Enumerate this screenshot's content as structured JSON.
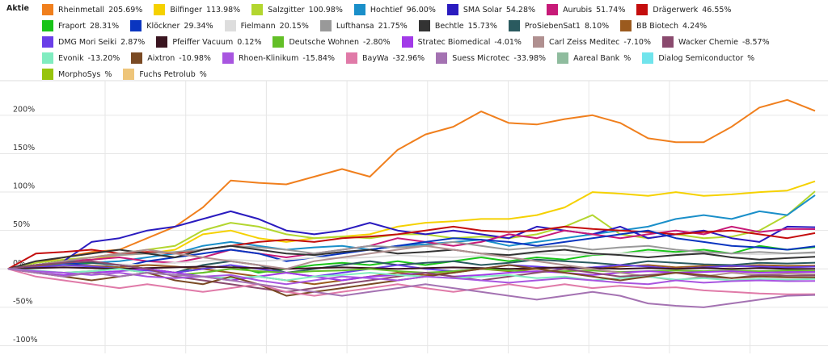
{
  "chart_data": {
    "type": "line",
    "legend_title": "Aktie",
    "categories": [
      null,
      null,
      null,
      null,
      null,
      null,
      null,
      null,
      null,
      null,
      null,
      null,
      null,
      null,
      null,
      null,
      null,
      null,
      null,
      null,
      null,
      null,
      null,
      null,
      null,
      null,
      null,
      null,
      null,
      null
    ],
    "ylim": [
      -110,
      245
    ],
    "yticks": [
      {
        "value": 200,
        "label": "200%"
      },
      {
        "value": 150,
        "label": "150%"
      },
      {
        "value": 100,
        "label": "100%"
      },
      {
        "value": 50,
        "label": "50%"
      },
      {
        "value": 0,
        "label": "0%"
      },
      {
        "value": -50,
        "label": "-50%"
      },
      {
        "value": -100,
        "label": "-100%"
      }
    ],
    "grid": true,
    "series": [
      {
        "name": "Rheinmetall",
        "change": 205.69,
        "change_label": "205.69%",
        "color": "#f07f1d",
        "values": [
          0,
          8,
          15,
          22,
          25,
          40,
          55,
          80,
          115,
          112,
          110,
          120,
          130,
          120,
          155,
          175,
          185,
          205,
          190,
          188,
          195,
          200,
          190,
          170,
          165,
          165,
          185,
          210,
          220,
          205.69
        ]
      },
      {
        "name": "Bilfinger",
        "change": 113.98,
        "change_label": "113.98%",
        "color": "#f5d100",
        "values": [
          0,
          5,
          10,
          12,
          18,
          20,
          25,
          45,
          50,
          40,
          35,
          40,
          42,
          45,
          55,
          60,
          62,
          65,
          65,
          70,
          80,
          100,
          98,
          95,
          100,
          95,
          97,
          100,
          102,
          113.98
        ]
      },
      {
        "name": "Salzgitter",
        "change": 100.98,
        "change_label": "100.98%",
        "color": "#b3d62f",
        "values": [
          0,
          8,
          12,
          15,
          20,
          25,
          30,
          50,
          60,
          55,
          45,
          40,
          42,
          40,
          45,
          45,
          40,
          42,
          40,
          45,
          55,
          70,
          45,
          40,
          45,
          40,
          42,
          50,
          70,
          100.98
        ]
      },
      {
        "name": "Hochtief",
        "change": 96.0,
        "change_label": "96.00%",
        "color": "#1a8fc9",
        "values": [
          0,
          3,
          6,
          8,
          10,
          15,
          20,
          30,
          35,
          30,
          25,
          28,
          30,
          25,
          30,
          32,
          35,
          38,
          30,
          35,
          40,
          45,
          50,
          55,
          65,
          70,
          65,
          75,
          70,
          96
        ]
      },
      {
        "name": "SMA Solar",
        "change": 54.28,
        "change_label": "54.28%",
        "color": "#2a1bbf",
        "values": [
          0,
          5,
          10,
          35,
          40,
          50,
          55,
          65,
          75,
          65,
          50,
          45,
          50,
          60,
          50,
          45,
          50,
          45,
          40,
          55,
          50,
          45,
          55,
          40,
          45,
          50,
          40,
          35,
          55,
          54.28
        ]
      },
      {
        "name": "Aurubis",
        "change": 51.74,
        "change_label": "51.74%",
        "color": "#c71a78",
        "values": [
          0,
          5,
          10,
          12,
          15,
          10,
          8,
          15,
          25,
          20,
          15,
          20,
          25,
          30,
          40,
          35,
          30,
          35,
          45,
          40,
          50,
          45,
          40,
          45,
          50,
          45,
          55,
          48,
          52,
          51.74
        ]
      },
      {
        "name": "Drägerwerk",
        "change": 46.55,
        "change_label": "46.55%",
        "color": "#c40d0d",
        "values": [
          0,
          20,
          22,
          25,
          20,
          22,
          20,
          25,
          30,
          35,
          38,
          35,
          40,
          42,
          45,
          50,
          55,
          50,
          48,
          50,
          55,
          52,
          50,
          48,
          45,
          48,
          50,
          45,
          40,
          46.55
        ]
      },
      {
        "name": "Fraport",
        "change": 28.31,
        "change_label": "28.31%",
        "color": "#19c419",
        "values": [
          0,
          5,
          5,
          8,
          5,
          0,
          -5,
          0,
          5,
          -5,
          0,
          5,
          8,
          5,
          10,
          5,
          10,
          15,
          10,
          15,
          12,
          18,
          20,
          25,
          22,
          25,
          20,
          30,
          25,
          28.31
        ]
      },
      {
        "name": "Klöckner",
        "change": 29.34,
        "change_label": "29.34%",
        "color": "#0a35c0",
        "values": [
          0,
          5,
          8,
          5,
          2,
          10,
          15,
          20,
          25,
          20,
          10,
          15,
          20,
          25,
          30,
          35,
          40,
          38,
          35,
          30,
          35,
          40,
          45,
          50,
          40,
          35,
          30,
          28,
          25,
          29.34
        ]
      },
      {
        "name": "Fielmann",
        "change": 20.15,
        "change_label": "20.15%",
        "color": "#dddddd",
        "values": [
          0,
          2,
          4,
          5,
          6,
          5,
          8,
          10,
          12,
          10,
          12,
          15,
          14,
          15,
          18,
          16,
          15,
          17,
          18,
          20,
          18,
          19,
          20,
          22,
          20,
          21,
          20,
          19,
          20,
          20.15
        ]
      },
      {
        "name": "Lufthansa",
        "change": 21.75,
        "change_label": "21.75%",
        "color": "#999999",
        "values": [
          0,
          5,
          10,
          15,
          18,
          20,
          22,
          25,
          30,
          28,
          25,
          20,
          25,
          30,
          28,
          30,
          35,
          30,
          25,
          28,
          30,
          25,
          28,
          30,
          25,
          22,
          20,
          22,
          20,
          21.75
        ]
      },
      {
        "name": "Bechtle",
        "change": 15.73,
        "change_label": "15.73%",
        "color": "#333333",
        "values": [
          0,
          10,
          15,
          20,
          25,
          20,
          15,
          25,
          30,
          25,
          20,
          18,
          22,
          25,
          20,
          22,
          25,
          20,
          18,
          22,
          25,
          20,
          18,
          15,
          18,
          20,
          15,
          12,
          14,
          15.73
        ]
      },
      {
        "name": "ProSiebenSat1",
        "change": 8.1,
        "change_label": "8.10%",
        "color": "#2a5a5f",
        "values": [
          0,
          5,
          10,
          8,
          5,
          0,
          -5,
          5,
          10,
          5,
          -5,
          0,
          5,
          10,
          5,
          8,
          10,
          5,
          8,
          12,
          10,
          8,
          5,
          10,
          8,
          6,
          5,
          8,
          7,
          8.1
        ]
      },
      {
        "name": "BB Biotech",
        "change": 4.24,
        "change_label": "4.24%",
        "color": "#9b5a1e",
        "values": [
          0,
          3,
          5,
          4,
          2,
          5,
          3,
          0,
          -5,
          -10,
          -15,
          -20,
          -15,
          -10,
          -5,
          -8,
          -5,
          0,
          -3,
          0,
          2,
          0,
          3,
          5,
          2,
          4,
          3,
          5,
          4,
          4.24
        ]
      },
      {
        "name": "DMG Mori Seiki",
        "change": 2.87,
        "change_label": "2.87%",
        "color": "#6a3ee8",
        "values": [
          0,
          2,
          5,
          3,
          0,
          -2,
          -5,
          0,
          5,
          0,
          -5,
          -10,
          -5,
          0,
          5,
          0,
          -3,
          0,
          5,
          3,
          0,
          2,
          5,
          3,
          0,
          2,
          4,
          3,
          2,
          2.87
        ]
      },
      {
        "name": "Pfeiffer Vacuum",
        "change": 0.12,
        "change_label": "0.12%",
        "color": "#3a1520",
        "values": [
          0,
          1,
          2,
          1,
          0,
          1,
          2,
          3,
          2,
          1,
          0,
          1,
          2,
          1,
          0,
          1,
          2,
          1,
          0,
          1,
          2,
          1,
          0,
          1,
          0,
          1,
          0,
          1,
          0,
          0.12
        ]
      },
      {
        "name": "Deutsche Wohnen",
        "change": -2.8,
        "change_label": "-2.80%",
        "color": "#63bf27",
        "values": [
          0,
          -3,
          -5,
          -3,
          0,
          -5,
          -8,
          -5,
          0,
          -3,
          -5,
          -3,
          -2,
          0,
          -3,
          -5,
          -3,
          0,
          -2,
          -4,
          -3,
          -2,
          -4,
          -3,
          -2,
          -3,
          -2,
          -3,
          -2,
          -2.8
        ]
      },
      {
        "name": "Stratec Biomedical",
        "change": -4.01,
        "change_label": "-4.01%",
        "color": "#a23ae8",
        "values": [
          0,
          -5,
          -8,
          -5,
          -3,
          0,
          -5,
          -10,
          -15,
          -10,
          -5,
          -10,
          -15,
          -10,
          -8,
          -5,
          -10,
          -8,
          -5,
          -3,
          -5,
          -8,
          -5,
          -3,
          -5,
          -4,
          -3,
          -5,
          -4,
          -4.01
        ]
      },
      {
        "name": "Carl Zeiss Meditec",
        "change": -7.1,
        "change_label": "-7.10%",
        "color": "#b09090",
        "values": [
          0,
          5,
          10,
          15,
          20,
          25,
          20,
          15,
          10,
          5,
          0,
          10,
          15,
          20,
          25,
          30,
          25,
          20,
          15,
          10,
          5,
          0,
          -5,
          -10,
          -15,
          -10,
          -5,
          -8,
          -6,
          -7.1
        ]
      },
      {
        "name": "Wacker Chemie",
        "change": -8.57,
        "change_label": "-8.57%",
        "color": "#8a4a6e",
        "values": [
          0,
          5,
          8,
          10,
          5,
          0,
          -10,
          -15,
          -20,
          -25,
          -30,
          -25,
          -20,
          -15,
          -10,
          -5,
          -10,
          -15,
          -10,
          -5,
          0,
          -5,
          -10,
          -8,
          -5,
          -10,
          -12,
          -8,
          -9,
          -8.57
        ]
      },
      {
        "name": "Evonik",
        "change": -13.2,
        "change_label": "-13.20%",
        "color": "#80ecc0",
        "values": [
          0,
          -2,
          -5,
          -3,
          0,
          -5,
          -8,
          -10,
          -12,
          -10,
          -15,
          -10,
          -8,
          -5,
          -8,
          -10,
          -12,
          -10,
          -8,
          -12,
          -10,
          -15,
          -12,
          -10,
          -14,
          -12,
          -15,
          -13,
          -14,
          -13.2
        ]
      },
      {
        "name": "Aixtron",
        "change": -10.98,
        "change_label": "-10.98%",
        "color": "#7a4a24",
        "values": [
          0,
          -5,
          -10,
          -15,
          -10,
          -5,
          -15,
          -20,
          -10,
          -20,
          -35,
          -30,
          -25,
          -20,
          -15,
          -10,
          -5,
          0,
          5,
          0,
          -5,
          -10,
          -15,
          -10,
          -5,
          -8,
          -12,
          -10,
          -11,
          -10.98
        ]
      },
      {
        "name": "Rhoen-Klinikum",
        "change": -15.84,
        "change_label": "-15.84%",
        "color": "#a855e0",
        "values": [
          0,
          -3,
          -5,
          -8,
          -5,
          -10,
          -12,
          -10,
          -8,
          -15,
          -20,
          -15,
          -10,
          -12,
          -15,
          -10,
          -12,
          -15,
          -18,
          -15,
          -12,
          -15,
          -18,
          -20,
          -15,
          -18,
          -16,
          -15,
          -16,
          -15.84
        ]
      },
      {
        "name": "BayWa",
        "change": -32.96,
        "change_label": "-32.96%",
        "color": "#e07aa8",
        "values": [
          0,
          -10,
          -15,
          -20,
          -25,
          -20,
          -25,
          -30,
          -25,
          -20,
          -30,
          -35,
          -30,
          -25,
          -20,
          -25,
          -30,
          -25,
          -20,
          -25,
          -20,
          -25,
          -22,
          -25,
          -24,
          -28,
          -30,
          -32,
          -33,
          -32.96
        ]
      },
      {
        "name": "Suess Microtec",
        "change": -33.98,
        "change_label": "-33.98%",
        "color": "#a472b2",
        "values": [
          0,
          -5,
          -10,
          -5,
          -10,
          -5,
          -8,
          -10,
          -15,
          -20,
          -25,
          -30,
          -35,
          -30,
          -25,
          -20,
          -25,
          -30,
          -35,
          -40,
          -35,
          -30,
          -35,
          -45,
          -48,
          -50,
          -45,
          -40,
          -35,
          -33.98
        ]
      },
      {
        "name": "Aareal Bank",
        "change": null,
        "change_label": "%",
        "color": "#8fbc9e",
        "values": [
          null,
          null,
          null,
          null,
          null,
          null,
          null,
          null,
          null,
          null,
          null,
          null,
          null,
          null,
          null,
          null,
          null,
          null,
          null,
          null,
          null,
          null,
          null,
          null,
          null,
          null,
          null,
          null,
          null,
          null
        ]
      },
      {
        "name": "Dialog Semiconductor",
        "change": null,
        "change_label": "%",
        "color": "#70e4ec",
        "values": [
          null,
          null,
          null,
          null,
          null,
          null,
          null,
          null,
          null,
          null,
          null,
          null,
          null,
          null,
          null,
          null,
          null,
          null,
          null,
          null,
          null,
          null,
          null,
          null,
          null,
          null,
          null,
          null,
          null,
          null
        ]
      },
      {
        "name": "MorphoSys",
        "change": null,
        "change_label": "%",
        "color": "#97c40c",
        "values": [
          null,
          null,
          null,
          null,
          null,
          null,
          null,
          null,
          null,
          null,
          null,
          null,
          null,
          null,
          null,
          null,
          null,
          null,
          null,
          null,
          null,
          null,
          null,
          null,
          null,
          null,
          null,
          null,
          null,
          null
        ]
      },
      {
        "name": "Fuchs Petrolub",
        "change": null,
        "change_label": "%",
        "color": "#eec57a",
        "values": [
          null,
          null,
          null,
          null,
          null,
          null,
          null,
          null,
          null,
          null,
          null,
          null,
          null,
          null,
          null,
          null,
          null,
          null,
          null,
          null,
          null,
          null,
          null,
          null,
          null,
          null,
          null,
          null,
          null,
          null
        ]
      }
    ]
  }
}
